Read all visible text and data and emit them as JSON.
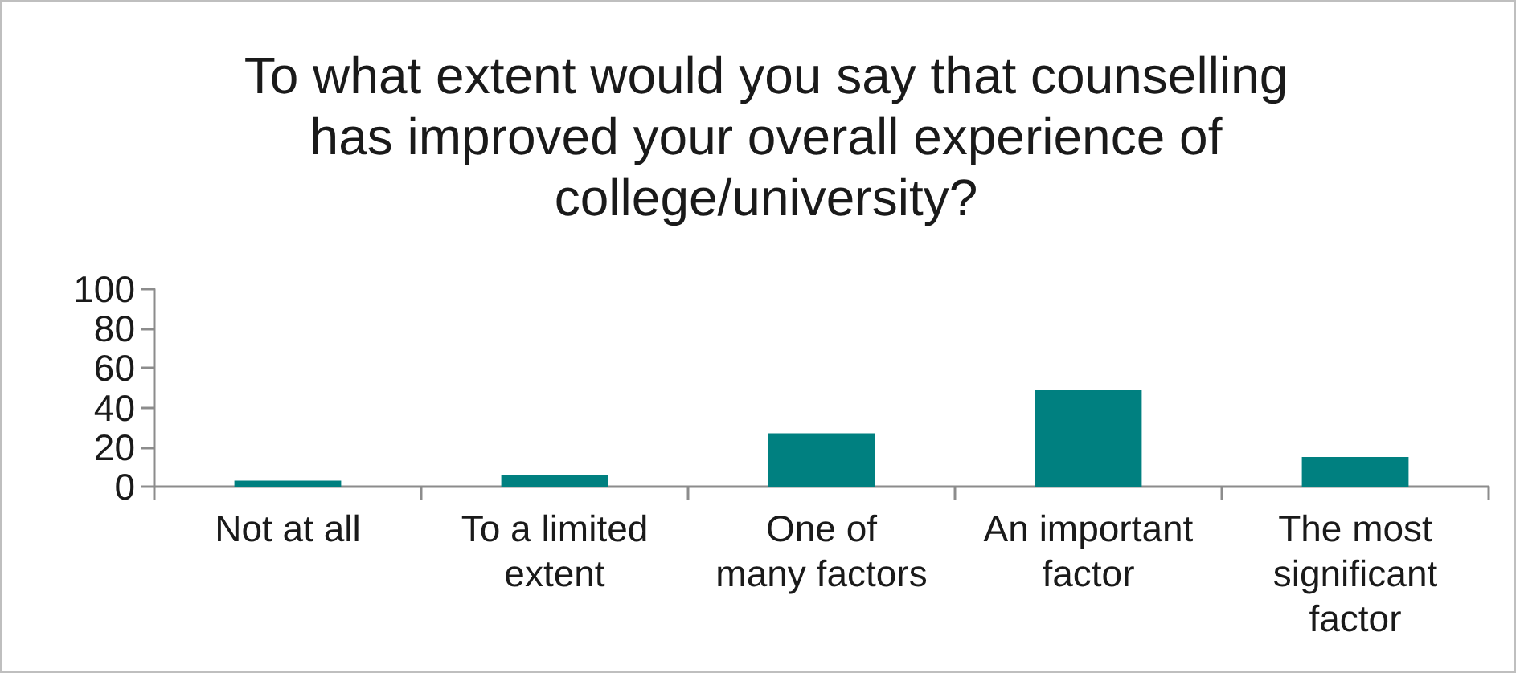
{
  "chart_data": {
    "type": "bar",
    "title": "To what extent would you say that counselling has improved your overall experience of college/university?",
    "categories": [
      "Not at all",
      "To a limited extent",
      "One of many factors",
      "An important factor",
      "The most significant factor"
    ],
    "values": [
      3,
      6,
      27,
      49,
      15
    ],
    "color": "#008080",
    "ylim": [
      0,
      100
    ],
    "yticks": [
      0,
      20,
      40,
      60,
      80,
      100
    ]
  }
}
